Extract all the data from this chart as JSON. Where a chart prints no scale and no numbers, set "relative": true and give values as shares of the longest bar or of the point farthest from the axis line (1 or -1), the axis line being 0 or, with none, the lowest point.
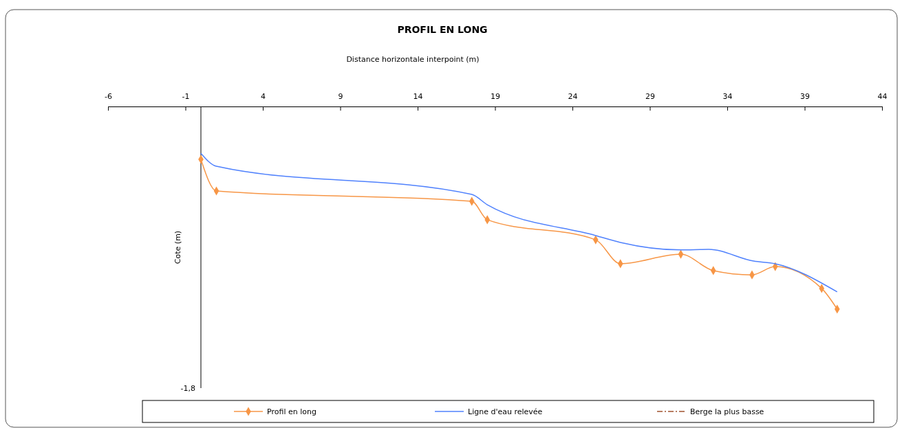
{
  "chart_data": {
    "type": "line",
    "title": "PROFIL EN LONG",
    "xlabel": "Distance horizontale interpoint  (m)",
    "ylabel": "Cote (m)",
    "relative": true,
    "xlim": [
      -6,
      44
    ],
    "xticks": [
      -6,
      -1,
      4,
      9,
      14,
      19,
      24,
      29,
      34,
      39,
      44
    ],
    "legend": "bottom",
    "line_style": "solid",
    "annotations": [
      "-1,8"
    ],
    "series": [
      {
        "name": "Profil en long",
        "color": "#f79646",
        "marker": "diamond",
        "x": [
          0,
          1,
          17.5,
          18.5,
          25.5,
          27.1,
          31,
          33.1,
          35.6,
          37.1,
          40.1,
          41.1
        ],
        "values": [
          -0.261,
          -0.417,
          -0.468,
          -0.559,
          -0.658,
          -0.776,
          -0.729,
          -0.81,
          -0.831,
          -0.79,
          -0.898,
          -1
        ]
      },
      {
        "name": "Ligne d'eau relevée",
        "color": "#4f81fd",
        "marker": "none",
        "x": [
          0,
          1,
          17.5,
          18.5,
          25.5,
          27.1,
          31,
          32.8,
          35.7,
          37.1,
          41.1
        ],
        "values": [
          -0.231,
          -0.295,
          -0.434,
          -0.485,
          -0.637,
          -0.671,
          -0.708,
          -0.705,
          -0.763,
          -0.776,
          -0.915
        ]
      },
      {
        "name": "Berge la plus basse",
        "color": "#a0522d",
        "marker": "none",
        "line_style": "dashed"
      }
    ]
  }
}
